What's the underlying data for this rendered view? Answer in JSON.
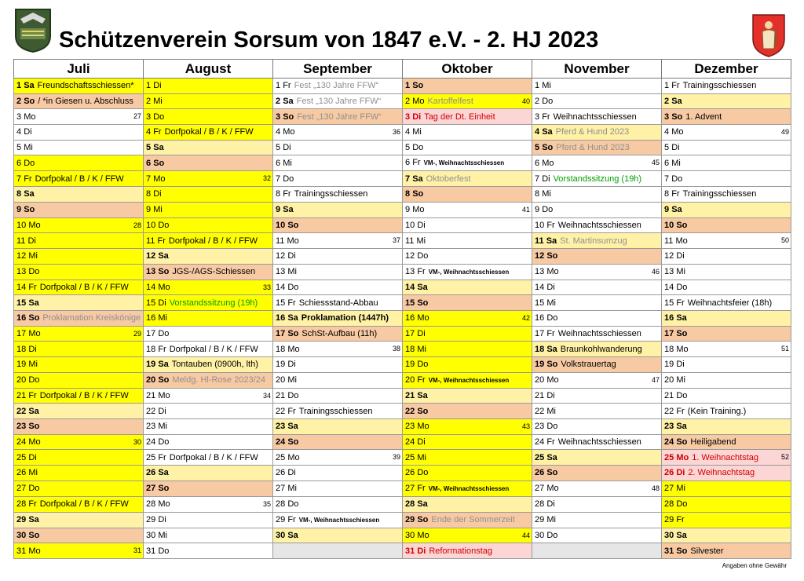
{
  "title": "Schützenverein Sorsum von 1847 e.V. - 2. HJ 2023",
  "footer": "Angaben ohne Gewähr",
  "months": [
    "Juli",
    "August",
    "September",
    "Oktober",
    "November",
    "Dezember"
  ],
  "rows": [
    [
      {
        "d": "1",
        "w": "Sa",
        "e": "Freundschaftsschiessen*",
        "bg": "y",
        "b": 1
      },
      {
        "d": "1",
        "w": "Di",
        "bg": "y"
      },
      {
        "d": "1",
        "w": "Fr",
        "e": "Fest „130 Jahre FFW“",
        "ec": "gray"
      },
      {
        "d": "1",
        "w": "So",
        "bg": "o",
        "b": 1
      },
      {
        "d": "1",
        "w": "Mi"
      },
      {
        "d": "1",
        "w": "Fr",
        "e": "Trainingsschiessen"
      }
    ],
    [
      {
        "d": "2",
        "w": "So",
        "e": "/ *in Giesen u. Abschluss",
        "bg": "o",
        "b": 1
      },
      {
        "d": "2",
        "w": "Mi",
        "bg": "y"
      },
      {
        "d": "2",
        "w": "Sa",
        "e": "Fest „130 Jahre FFW“",
        "ec": "gray",
        "b": 1
      },
      {
        "d": "2",
        "w": "Mo",
        "e": "Kartoffelfest",
        "ec": "gray",
        "bg": "y",
        "k": "40"
      },
      {
        "d": "2",
        "w": "Do"
      },
      {
        "d": "2",
        "w": "Sa",
        "bg": "ly",
        "b": 1
      }
    ],
    [
      {
        "d": "3",
        "w": "Mo",
        "k": "27"
      },
      {
        "d": "3",
        "w": "Do",
        "bg": "y"
      },
      {
        "d": "3",
        "w": "So",
        "e": "Fest „130 Jahre FFW“",
        "ec": "gray",
        "bg": "o",
        "b": 1
      },
      {
        "d": "3",
        "w": "Di",
        "e": "Tag der Dt. Einheit",
        "ec": "red",
        "bg": "pk",
        "b": 1,
        "red": 1
      },
      {
        "d": "3",
        "w": "Fr",
        "e": "Weihnachtsschiessen"
      },
      {
        "d": "3",
        "w": "So",
        "e": "1. Advent",
        "bg": "o",
        "b": 1
      }
    ],
    [
      {
        "d": "4",
        "w": "Di"
      },
      {
        "d": "4",
        "w": "Fr",
        "e": "Dorfpokal / B / K / FFW",
        "bg": "y"
      },
      {
        "d": "4",
        "w": "Mo",
        "k": "36"
      },
      {
        "d": "4",
        "w": "Mi"
      },
      {
        "d": "4",
        "w": "Sa",
        "e": "Pferd & Hund 2023",
        "ec": "gray",
        "bg": "ly",
        "b": 1
      },
      {
        "d": "4",
        "w": "Mo",
        "k": "49"
      }
    ],
    [
      {
        "d": "5",
        "w": "Mi"
      },
      {
        "d": "5",
        "w": "Sa",
        "bg": "ly",
        "b": 1
      },
      {
        "d": "5",
        "w": "Di"
      },
      {
        "d": "5",
        "w": "Do"
      },
      {
        "d": "5",
        "w": "So",
        "e": "Pferd & Hund 2023",
        "ec": "gray",
        "bg": "o",
        "b": 1
      },
      {
        "d": "5",
        "w": "Di"
      }
    ],
    [
      {
        "d": "6",
        "w": "Do",
        "bg": "y"
      },
      {
        "d": "6",
        "w": "So",
        "bg": "o",
        "b": 1
      },
      {
        "d": "6",
        "w": "Mi"
      },
      {
        "d": "6",
        "w": "Fr",
        "e": "VM-, Weihnachtsschiessen",
        "es": 1
      },
      {
        "d": "6",
        "w": "Mo",
        "k": "45"
      },
      {
        "d": "6",
        "w": "Mi"
      }
    ],
    [
      {
        "d": "7",
        "w": "Fr",
        "e": "Dorfpokal / B / K / FFW",
        "bg": "y"
      },
      {
        "d": "7",
        "w": "Mo",
        "bg": "y",
        "k": "32"
      },
      {
        "d": "7",
        "w": "Do"
      },
      {
        "d": "7",
        "w": "Sa",
        "e": "Oktoberfest",
        "ec": "gray",
        "bg": "ly",
        "b": 1
      },
      {
        "d": "7",
        "w": "Di",
        "e": "Vorstandssitzung (19h)",
        "ec": "green"
      },
      {
        "d": "7",
        "w": "Do"
      }
    ],
    [
      {
        "d": "8",
        "w": "Sa",
        "bg": "ly",
        "b": 1
      },
      {
        "d": "8",
        "w": "Di",
        "bg": "y"
      },
      {
        "d": "8",
        "w": "Fr",
        "e": "Trainingsschiessen"
      },
      {
        "d": "8",
        "w": "So",
        "bg": "o",
        "b": 1
      },
      {
        "d": "8",
        "w": "Mi"
      },
      {
        "d": "8",
        "w": "Fr",
        "e": "Trainingsschiessen"
      }
    ],
    [
      {
        "d": "9",
        "w": "So",
        "bg": "o",
        "b": 1
      },
      {
        "d": "9",
        "w": "Mi",
        "bg": "y"
      },
      {
        "d": "9",
        "w": "Sa",
        "bg": "ly",
        "b": 1
      },
      {
        "d": "9",
        "w": "Mo",
        "k": "41"
      },
      {
        "d": "9",
        "w": "Do"
      },
      {
        "d": "9",
        "w": "Sa",
        "bg": "ly",
        "b": 1
      }
    ],
    [
      {
        "d": "10",
        "w": "Mo",
        "bg": "y",
        "k": "28"
      },
      {
        "d": "10",
        "w": "Do",
        "bg": "y"
      },
      {
        "d": "10",
        "w": "So",
        "bg": "o",
        "b": 1
      },
      {
        "d": "10",
        "w": "Di"
      },
      {
        "d": "10",
        "w": "Fr",
        "e": "Weihnachtsschiessen"
      },
      {
        "d": "10",
        "w": "So",
        "bg": "o",
        "b": 1
      }
    ],
    [
      {
        "d": "11",
        "w": "Di",
        "bg": "y"
      },
      {
        "d": "11",
        "w": "Fr",
        "e": "Dorfpokal / B / K / FFW",
        "bg": "y"
      },
      {
        "d": "11",
        "w": "Mo",
        "k": "37"
      },
      {
        "d": "11",
        "w": "Mi"
      },
      {
        "d": "11",
        "w": "Sa",
        "e": "St. Martinsumzug",
        "ec": "gray",
        "bg": "ly",
        "b": 1
      },
      {
        "d": "11",
        "w": "Mo",
        "k": "50"
      }
    ],
    [
      {
        "d": "12",
        "w": "Mi",
        "bg": "y"
      },
      {
        "d": "12",
        "w": "Sa",
        "bg": "ly",
        "b": 1
      },
      {
        "d": "12",
        "w": "Di"
      },
      {
        "d": "12",
        "w": "Do"
      },
      {
        "d": "12",
        "w": "So",
        "bg": "o",
        "b": 1
      },
      {
        "d": "12",
        "w": "Di"
      }
    ],
    [
      {
        "d": "13",
        "w": "Do",
        "bg": "y"
      },
      {
        "d": "13",
        "w": "So",
        "e": "JGS-/AGS-Schiessen",
        "bg": "o",
        "b": 1
      },
      {
        "d": "13",
        "w": "Mi"
      },
      {
        "d": "13",
        "w": "Fr",
        "e": "VM-, Weihnachtsschiessen",
        "es": 1
      },
      {
        "d": "13",
        "w": "Mo",
        "k": "46"
      },
      {
        "d": "13",
        "w": "Mi"
      }
    ],
    [
      {
        "d": "14",
        "w": "Fr",
        "e": "Dorfpokal / B / K / FFW",
        "bg": "y"
      },
      {
        "d": "14",
        "w": "Mo",
        "bg": "y",
        "k": "33"
      },
      {
        "d": "14",
        "w": "Do"
      },
      {
        "d": "14",
        "w": "Sa",
        "bg": "ly",
        "b": 1
      },
      {
        "d": "14",
        "w": "Di"
      },
      {
        "d": "14",
        "w": "Do"
      }
    ],
    [
      {
        "d": "15",
        "w": "Sa",
        "bg": "ly",
        "b": 1
      },
      {
        "d": "15",
        "w": "Di",
        "e": "Vorstandssitzung (19h)",
        "ec": "green",
        "bg": "y"
      },
      {
        "d": "15",
        "w": "Fr",
        "e": "Schiessstand-Abbau"
      },
      {
        "d": "15",
        "w": "So",
        "bg": "o",
        "b": 1
      },
      {
        "d": "15",
        "w": "Mi"
      },
      {
        "d": "15",
        "w": "Fr",
        "e": "Weihnachtsfeier (18h)"
      }
    ],
    [
      {
        "d": "16",
        "w": "So",
        "e": "Proklamation Kreiskönige",
        "ec": "gray",
        "bg": "o",
        "b": 1
      },
      {
        "d": "16",
        "w": "Mi",
        "bg": "y"
      },
      {
        "d": "16",
        "w": "Sa",
        "e": "Proklamation (1447h)",
        "bg": "ly",
        "b": 1,
        "eb": 1
      },
      {
        "d": "16",
        "w": "Mo",
        "bg": "y",
        "k": "42"
      },
      {
        "d": "16",
        "w": "Do"
      },
      {
        "d": "16",
        "w": "Sa",
        "bg": "ly",
        "b": 1
      }
    ],
    [
      {
        "d": "17",
        "w": "Mo",
        "bg": "y",
        "k": "29"
      },
      {
        "d": "17",
        "w": "Do"
      },
      {
        "d": "17",
        "w": "So",
        "e": "SchSt-Aufbau (11h)",
        "bg": "o",
        "b": 1
      },
      {
        "d": "17",
        "w": "Di",
        "bg": "y"
      },
      {
        "d": "17",
        "w": "Fr",
        "e": "Weihnachtsschiessen"
      },
      {
        "d": "17",
        "w": "So",
        "bg": "o",
        "b": 1
      }
    ],
    [
      {
        "d": "18",
        "w": "Di",
        "bg": "y"
      },
      {
        "d": "18",
        "w": "Fr",
        "e": "Dorfpokal / B / K / FFW"
      },
      {
        "d": "18",
        "w": "Mo",
        "k": "38"
      },
      {
        "d": "18",
        "w": "Mi",
        "bg": "y"
      },
      {
        "d": "18",
        "w": "Sa",
        "e": "Braunkohlwanderung",
        "bg": "ly",
        "b": 1
      },
      {
        "d": "18",
        "w": "Mo",
        "k": "51"
      }
    ],
    [
      {
        "d": "19",
        "w": "Mi",
        "bg": "y"
      },
      {
        "d": "19",
        "w": "Sa",
        "e": "Tontauben (0900h, lth)",
        "bg": "ly",
        "b": 1
      },
      {
        "d": "19",
        "w": "Di"
      },
      {
        "d": "19",
        "w": "Do",
        "bg": "y"
      },
      {
        "d": "19",
        "w": "So",
        "e": "Volkstrauertag",
        "bg": "o",
        "b": 1
      },
      {
        "d": "19",
        "w": "Di"
      }
    ],
    [
      {
        "d": "20",
        "w": "Do",
        "bg": "y"
      },
      {
        "d": "20",
        "w": "So",
        "e": "Meldg. Hl-Rose 2023/24",
        "ec": "gray",
        "bg": "o",
        "b": 1
      },
      {
        "d": "20",
        "w": "Mi"
      },
      {
        "d": "20",
        "w": "Fr",
        "e": "VM-, Weihnachtsschiessen",
        "es": 1,
        "bg": "y"
      },
      {
        "d": "20",
        "w": "Mo",
        "k": "47"
      },
      {
        "d": "20",
        "w": "Mi"
      }
    ],
    [
      {
        "d": "21",
        "w": "Fr",
        "e": "Dorfpokal / B / K / FFW",
        "bg": "y"
      },
      {
        "d": "21",
        "w": "Mo",
        "k": "34"
      },
      {
        "d": "21",
        "w": "Do"
      },
      {
        "d": "21",
        "w": "Sa",
        "bg": "ly",
        "b": 1
      },
      {
        "d": "21",
        "w": "Di"
      },
      {
        "d": "21",
        "w": "Do"
      }
    ],
    [
      {
        "d": "22",
        "w": "Sa",
        "bg": "ly",
        "b": 1
      },
      {
        "d": "22",
        "w": "Di"
      },
      {
        "d": "22",
        "w": "Fr",
        "e": "Trainingsschiessen"
      },
      {
        "d": "22",
        "w": "So",
        "bg": "o",
        "b": 1
      },
      {
        "d": "22",
        "w": "Mi"
      },
      {
        "d": "22",
        "w": "Fr",
        "e": "(Kein Training.)"
      }
    ],
    [
      {
        "d": "23",
        "w": "So",
        "bg": "o",
        "b": 1
      },
      {
        "d": "23",
        "w": "Mi"
      },
      {
        "d": "23",
        "w": "Sa",
        "bg": "ly",
        "b": 1
      },
      {
        "d": "23",
        "w": "Mo",
        "bg": "y",
        "k": "43"
      },
      {
        "d": "23",
        "w": "Do"
      },
      {
        "d": "23",
        "w": "Sa",
        "bg": "ly",
        "b": 1
      }
    ],
    [
      {
        "d": "24",
        "w": "Mo",
        "bg": "y",
        "k": "30"
      },
      {
        "d": "24",
        "w": "Do"
      },
      {
        "d": "24",
        "w": "So",
        "bg": "o",
        "b": 1
      },
      {
        "d": "24",
        "w": "Di",
        "bg": "y"
      },
      {
        "d": "24",
        "w": "Fr",
        "e": "Weihnachtsschiessen"
      },
      {
        "d": "24",
        "w": "So",
        "e": "Heiligabend",
        "bg": "o",
        "b": 1
      }
    ],
    [
      {
        "d": "25",
        "w": "Di",
        "bg": "y"
      },
      {
        "d": "25",
        "w": "Fr",
        "e": "Dorfpokal / B / K / FFW"
      },
      {
        "d": "25",
        "w": "Mo",
        "k": "39"
      },
      {
        "d": "25",
        "w": "Mi",
        "bg": "y"
      },
      {
        "d": "25",
        "w": "Sa",
        "bg": "ly",
        "b": 1
      },
      {
        "d": "25",
        "w": "Mo",
        "e": "1. Weihnachtstag",
        "ec": "red",
        "bg": "pk",
        "b": 1,
        "red": 1,
        "k": "52"
      }
    ],
    [
      {
        "d": "26",
        "w": "Mi",
        "bg": "y"
      },
      {
        "d": "26",
        "w": "Sa",
        "bg": "ly",
        "b": 1
      },
      {
        "d": "26",
        "w": "Di"
      },
      {
        "d": "26",
        "w": "Do",
        "bg": "y"
      },
      {
        "d": "26",
        "w": "So",
        "bg": "o",
        "b": 1
      },
      {
        "d": "26",
        "w": "Di",
        "e": "2. Weihnachtstag",
        "ec": "red",
        "bg": "pk",
        "b": 1,
        "red": 1
      }
    ],
    [
      {
        "d": "27",
        "w": "Do",
        "bg": "y"
      },
      {
        "d": "27",
        "w": "So",
        "bg": "o",
        "b": 1
      },
      {
        "d": "27",
        "w": "Mi"
      },
      {
        "d": "27",
        "w": "Fr",
        "e": "VM-, Weihnachtsschiessen",
        "es": 1,
        "bg": "y"
      },
      {
        "d": "27",
        "w": "Mo",
        "k": "48"
      },
      {
        "d": "27",
        "w": "Mi",
        "bg": "y"
      }
    ],
    [
      {
        "d": "28",
        "w": "Fr",
        "e": "Dorfpokal / B / K / FFW",
        "bg": "y"
      },
      {
        "d": "28",
        "w": "Mo",
        "k": "35"
      },
      {
        "d": "28",
        "w": "Do"
      },
      {
        "d": "28",
        "w": "Sa",
        "bg": "ly",
        "b": 1
      },
      {
        "d": "28",
        "w": "Di"
      },
      {
        "d": "28",
        "w": "Do",
        "bg": "y"
      }
    ],
    [
      {
        "d": "29",
        "w": "Sa",
        "bg": "ly",
        "b": 1
      },
      {
        "d": "29",
        "w": "Di"
      },
      {
        "d": "29",
        "w": "Fr",
        "e": "VM-, Weihnachtsschiessen",
        "es": 1
      },
      {
        "d": "29",
        "w": "So",
        "e": "Ende der Sommerzeit",
        "ec": "gray",
        "bg": "o",
        "b": 1
      },
      {
        "d": "29",
        "w": "Mi"
      },
      {
        "d": "29",
        "w": "Fr",
        "bg": "y"
      }
    ],
    [
      {
        "d": "30",
        "w": "So",
        "bg": "o",
        "b": 1
      },
      {
        "d": "30",
        "w": "Mi"
      },
      {
        "d": "30",
        "w": "Sa",
        "bg": "ly",
        "b": 1
      },
      {
        "d": "30",
        "w": "Mo",
        "bg": "y",
        "k": "44"
      },
      {
        "d": "30",
        "w": "Do"
      },
      {
        "d": "30",
        "w": "Sa",
        "bg": "ly",
        "b": 1
      }
    ],
    [
      {
        "d": "31",
        "w": "Mo",
        "bg": "y",
        "k": "31"
      },
      {
        "d": "31",
        "w": "Do"
      },
      {
        "bg": "gr"
      },
      {
        "d": "31",
        "w": "Di",
        "e": "Reformationstag",
        "ec": "red",
        "bg": "pk",
        "b": 1,
        "red": 1
      },
      {
        "bg": "gr",
        "empty": 1
      },
      {
        "d": "31",
        "w": "So",
        "e": "Silvester",
        "bg": "o",
        "b": 1
      }
    ]
  ]
}
